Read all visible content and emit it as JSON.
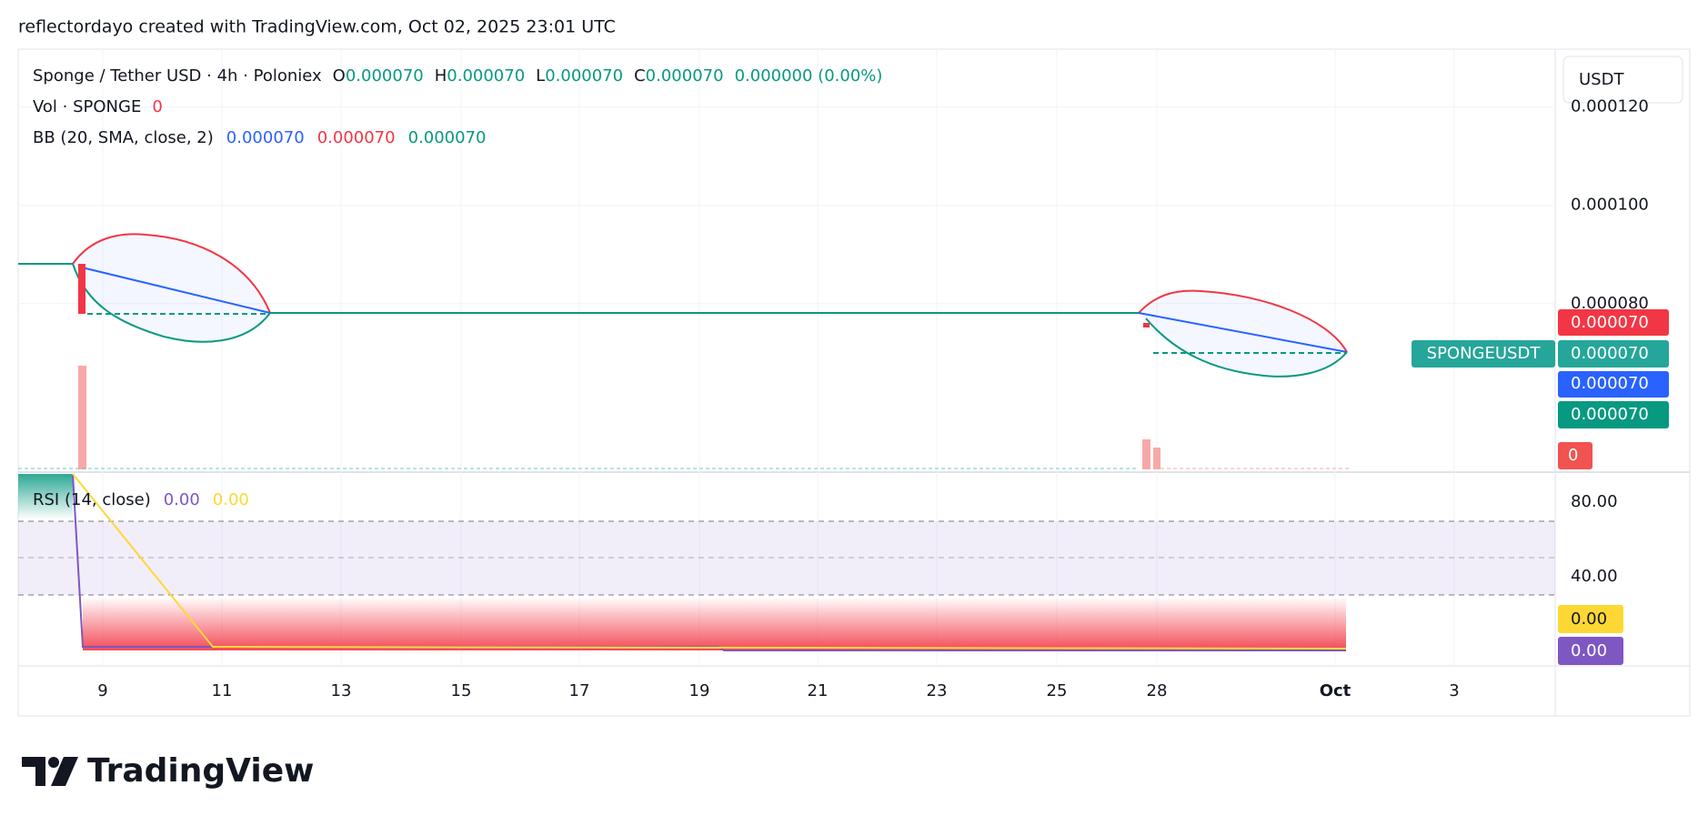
{
  "header": {
    "attribution": "reflectordayo created with TradingView.com, Oct 02, 2025 23:01 UTC"
  },
  "legend": {
    "symbol": "Sponge / Tether USD · 4h · Poloniex",
    "ohlc": [
      {
        "key": "O",
        "value": "0.000070"
      },
      {
        "key": "H",
        "value": "0.000070"
      },
      {
        "key": "L",
        "value": "0.000070"
      },
      {
        "key": "C",
        "value": "0.000070"
      }
    ],
    "change": "0.000000 (0.00%)",
    "volume": {
      "label": "Vol · SPONGE",
      "value": "0"
    },
    "bb": {
      "label": "BB (20, SMA, close, 2)",
      "values": [
        "0.000070",
        "0.000070",
        "0.000070"
      ]
    },
    "rsi": {
      "label": "RSI (14, close)",
      "values": [
        "0.00",
        "0.00"
      ]
    }
  },
  "currency_button": "USDT",
  "price_scale_labels": {
    "bb_upper": "0.000070",
    "symbol_name": "SPONGEUSDT",
    "last_price": "0.000070",
    "bb_basis": "0.000070",
    "bb_lower": "0.000070",
    "volume": "0",
    "rsi_ma": "0.00",
    "rsi": "0.00"
  },
  "chart_data": {
    "type": "candlestick",
    "ylim": [
      4.57e-05,
      0.0001318
    ],
    "yticks": [
      {
        "value": 0.00012,
        "label": "0.000120"
      },
      {
        "value": 0.0001,
        "label": "0.000100"
      },
      {
        "value": 8e-05,
        "label": "0.000080"
      }
    ],
    "rsi_ylim": [
      -7.8,
      95.1
    ],
    "rsi_yticks": [
      {
        "value": 80,
        "label": "80.00"
      },
      {
        "value": 40,
        "label": "40.00"
      }
    ],
    "time_labels": [
      "9",
      "11",
      "13",
      "15",
      "17",
      "19",
      "21",
      "23",
      "25",
      "28",
      "Oct",
      "3"
    ],
    "grid": true
  },
  "brand": "TradingView"
}
